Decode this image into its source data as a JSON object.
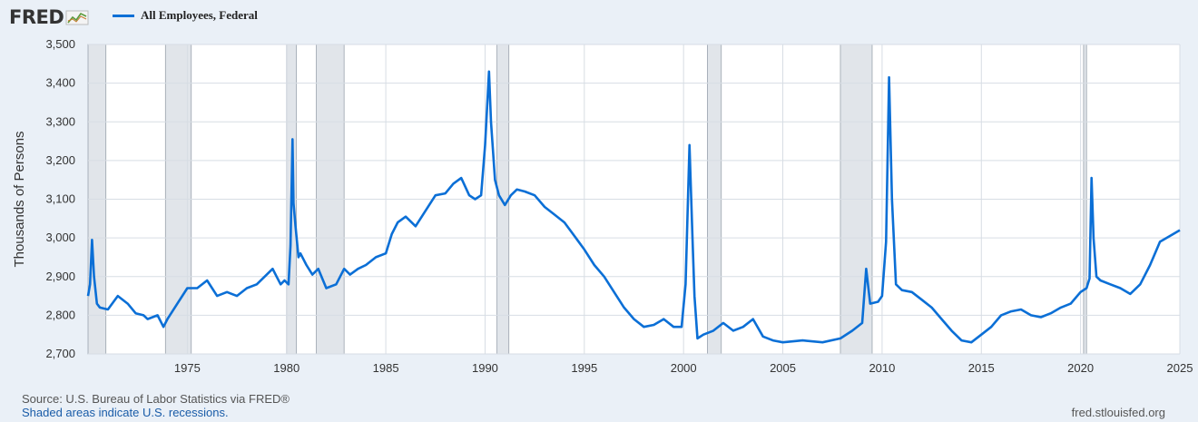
{
  "brand": {
    "name": "FRED",
    "icon": "chart-line-icon"
  },
  "chart_data": {
    "type": "line",
    "title": "",
    "xlabel": "",
    "ylabel": "Thousands of Persons",
    "xlim": [
      1970,
      2025
    ],
    "ylim": [
      2700,
      3500
    ],
    "yticks": [
      "2,700",
      "2,800",
      "2,900",
      "3,000",
      "3,100",
      "3,200",
      "3,300",
      "3,400",
      "3,500"
    ],
    "xticks": [
      "1975",
      "1980",
      "1985",
      "1990",
      "1995",
      "2000",
      "2005",
      "2010",
      "2015",
      "2020",
      "2025"
    ],
    "grid": true,
    "legend_position": "top-left",
    "shading_note": "recessions",
    "recessions": [
      [
        1970.0,
        1970.9
      ],
      [
        1973.9,
        1975.2
      ],
      [
        1980.0,
        1980.5
      ],
      [
        1981.5,
        1982.9
      ],
      [
        1990.6,
        1991.2
      ],
      [
        2001.2,
        2001.9
      ],
      [
        2007.9,
        2009.5
      ],
      [
        2020.15,
        2020.3
      ]
    ],
    "series": [
      {
        "name": "All Employees, Federal",
        "color": "#0b6fd6",
        "x": [
          1970.0,
          1970.1,
          1970.2,
          1970.3,
          1970.45,
          1970.6,
          1971.0,
          1971.5,
          1972.0,
          1972.4,
          1972.8,
          1973.0,
          1973.5,
          1973.8,
          1974.0,
          1974.5,
          1975.0,
          1975.5,
          1976.0,
          1976.5,
          1977.0,
          1977.5,
          1978.0,
          1978.5,
          1979.0,
          1979.3,
          1979.5,
          1979.7,
          1979.9,
          1980.1,
          1980.2,
          1980.3,
          1980.35,
          1980.45,
          1980.6,
          1980.7,
          1981.0,
          1981.3,
          1981.6,
          1982.0,
          1982.5,
          1982.9,
          1983.2,
          1983.6,
          1984.0,
          1984.5,
          1985.0,
          1985.3,
          1985.6,
          1986.0,
          1986.5,
          1987.0,
          1987.5,
          1988.0,
          1988.4,
          1988.8,
          1989.2,
          1989.5,
          1989.8,
          1990.0,
          1990.2,
          1990.3,
          1990.5,
          1990.7,
          1991.0,
          1991.3,
          1991.6,
          1992.0,
          1992.5,
          1993.0,
          1993.5,
          1994.0,
          1994.5,
          1995.0,
          1995.5,
          1996.0,
          1996.5,
          1997.0,
          1997.5,
          1998.0,
          1998.5,
          1999.0,
          1999.5,
          1999.9,
          2000.1,
          2000.3,
          2000.45,
          2000.55,
          2000.7,
          2001.0,
          2001.5,
          2002.0,
          2002.5,
          2003.0,
          2003.5,
          2004.0,
          2004.5,
          2005.0,
          2006.0,
          2007.0,
          2007.9,
          2008.5,
          2009.0,
          2009.2,
          2009.4,
          2009.8,
          2010.0,
          2010.2,
          2010.35,
          2010.5,
          2010.7,
          2011.0,
          2011.5,
          2012.0,
          2012.5,
          2013.0,
          2013.5,
          2014.0,
          2014.5,
          2015.0,
          2015.5,
          2016.0,
          2016.5,
          2017.0,
          2017.5,
          2018.0,
          2018.5,
          2019.0,
          2019.5,
          2020.0,
          2020.3,
          2020.45,
          2020.55,
          2020.65,
          2020.8,
          2021.0,
          2021.5,
          2022.0,
          2022.5,
          2023.0,
          2023.5,
          2024.0,
          2024.5,
          2025.0
        ],
        "values": [
          2850,
          2880,
          2995,
          2900,
          2830,
          2820,
          2815,
          2850,
          2830,
          2805,
          2800,
          2790,
          2800,
          2770,
          2790,
          2830,
          2870,
          2870,
          2890,
          2850,
          2860,
          2850,
          2870,
          2880,
          2905,
          2920,
          2900,
          2880,
          2890,
          2880,
          2980,
          3255,
          3090,
          3030,
          2950,
          2960,
          2930,
          2905,
          2920,
          2870,
          2880,
          2920,
          2905,
          2920,
          2930,
          2950,
          2960,
          3010,
          3040,
          3055,
          3030,
          3070,
          3110,
          3115,
          3140,
          3155,
          3110,
          3100,
          3110,
          3240,
          3430,
          3300,
          3150,
          3110,
          3085,
          3110,
          3125,
          3120,
          3110,
          3080,
          3060,
          3040,
          3005,
          2970,
          2930,
          2900,
          2860,
          2820,
          2790,
          2770,
          2775,
          2790,
          2770,
          2770,
          2880,
          3240,
          3000,
          2850,
          2740,
          2750,
          2760,
          2780,
          2760,
          2770,
          2790,
          2745,
          2735,
          2730,
          2735,
          2730,
          2740,
          2760,
          2780,
          2920,
          2830,
          2835,
          2850,
          2990,
          3415,
          3100,
          2880,
          2865,
          2860,
          2840,
          2820,
          2790,
          2760,
          2735,
          2730,
          2750,
          2770,
          2800,
          2810,
          2815,
          2800,
          2795,
          2805,
          2820,
          2830,
          2860,
          2870,
          2895,
          3155,
          3000,
          2900,
          2890,
          2880,
          2870,
          2855,
          2880,
          2930,
          2990,
          3005,
          3020
        ]
      }
    ]
  },
  "footer": {
    "source": "Source: U.S. Bureau of Labor Statistics via FRED®",
    "note": "Shaded areas indicate U.S. recessions.",
    "site": "fred.stlouisfed.org"
  }
}
